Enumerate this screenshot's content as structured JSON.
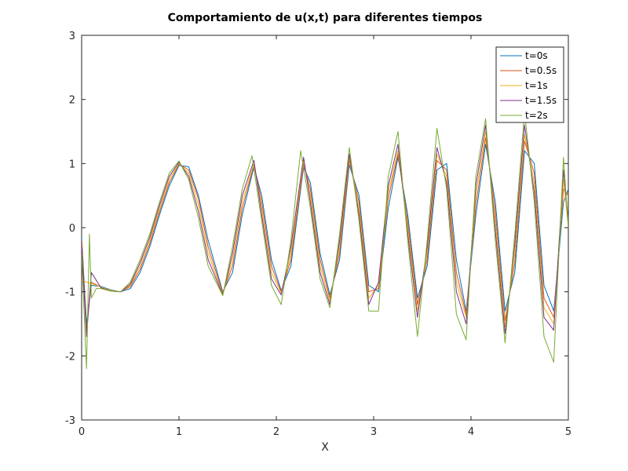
{
  "chart_data": {
    "type": "line",
    "title": "Comportamiento de u(x,t) para diferentes tiempos",
    "xlabel": "X",
    "ylabel": "",
    "xlim": [
      0,
      5
    ],
    "ylim": [
      -3,
      3
    ],
    "xticks": [
      "0",
      "1",
      "2",
      "3",
      "4",
      "5"
    ],
    "yticks": [
      "-3",
      "-2",
      "-1",
      "0",
      "1",
      "2",
      "3"
    ],
    "grid": false,
    "legend_position": "top-right",
    "series": [
      {
        "name": "t=0s",
        "color": "#0072BD",
        "x": [
          0,
          0.05,
          0.1,
          0.2,
          0.3,
          0.4,
          0.5,
          0.6,
          0.7,
          0.8,
          0.9,
          1.0,
          1.1,
          1.2,
          1.3,
          1.45,
          1.55,
          1.65,
          1.77,
          1.85,
          1.95,
          2.05,
          2.15,
          2.28,
          2.35,
          2.45,
          2.55,
          2.65,
          2.75,
          2.85,
          2.95,
          3.05,
          3.15,
          3.25,
          3.35,
          3.45,
          3.55,
          3.65,
          3.75,
          3.85,
          3.95,
          4.05,
          4.15,
          4.25,
          4.35,
          4.45,
          4.55,
          4.65,
          4.75,
          4.85,
          4.95,
          5.0
        ],
        "y": [
          -0.15,
          -1.5,
          -0.9,
          -0.92,
          -0.97,
          -1.0,
          -0.95,
          -0.7,
          -0.3,
          0.2,
          0.65,
          0.97,
          0.95,
          0.5,
          -0.2,
          -1.0,
          -0.7,
          0.2,
          0.95,
          0.5,
          -0.5,
          -0.98,
          -0.6,
          0.95,
          0.7,
          -0.4,
          -1.05,
          -0.5,
          0.98,
          0.5,
          -0.9,
          -1.0,
          0.3,
          1.1,
          0.2,
          -1.1,
          -0.6,
          0.9,
          1.0,
          -0.5,
          -1.3,
          0.2,
          1.3,
          0.4,
          -1.3,
          -0.7,
          1.2,
          1.0,
          -0.9,
          -1.3,
          0.4,
          0.6
        ]
      },
      {
        "name": "t=0.5s",
        "color": "#D95319",
        "x": [
          0,
          0.05,
          0.1,
          0.2,
          0.3,
          0.4,
          0.5,
          0.6,
          0.7,
          0.8,
          0.9,
          1.0,
          1.1,
          1.2,
          1.3,
          1.45,
          1.55,
          1.65,
          1.77,
          1.85,
          1.95,
          2.05,
          2.15,
          2.28,
          2.35,
          2.45,
          2.55,
          2.65,
          2.75,
          2.85,
          2.95,
          3.05,
          3.15,
          3.25,
          3.35,
          3.45,
          3.55,
          3.65,
          3.75,
          3.85,
          3.95,
          4.05,
          4.15,
          4.25,
          4.35,
          4.45,
          4.55,
          4.65,
          4.75,
          4.85,
          4.95,
          5.0
        ],
        "y": [
          -0.2,
          -1.6,
          -0.85,
          -0.93,
          -0.98,
          -1.0,
          -0.92,
          -0.65,
          -0.25,
          0.25,
          0.7,
          0.99,
          0.9,
          0.45,
          -0.3,
          -1.02,
          -0.6,
          0.3,
          0.98,
          0.4,
          -0.6,
          -1.0,
          -0.5,
          1.0,
          0.6,
          -0.5,
          -1.1,
          -0.4,
          1.05,
          0.4,
          -1.0,
          -0.95,
          0.45,
          1.15,
          0.1,
          -1.2,
          -0.5,
          1.05,
          0.9,
          -0.7,
          -1.35,
          0.35,
          1.4,
          0.25,
          -1.45,
          -0.55,
          1.35,
          0.85,
          -1.1,
          -1.4,
          0.6,
          0.5
        ]
      },
      {
        "name": "t=1s",
        "color": "#EDB120",
        "x": [
          0,
          0.05,
          0.1,
          0.2,
          0.3,
          0.4,
          0.5,
          0.6,
          0.7,
          0.8,
          0.9,
          1.0,
          1.1,
          1.2,
          1.3,
          1.45,
          1.55,
          1.65,
          1.77,
          1.85,
          1.95,
          2.05,
          2.15,
          2.28,
          2.35,
          2.45,
          2.55,
          2.65,
          2.75,
          2.85,
          2.95,
          3.05,
          3.15,
          3.25,
          3.35,
          3.45,
          3.55,
          3.65,
          3.75,
          3.85,
          3.95,
          4.05,
          4.15,
          4.25,
          4.35,
          4.45,
          4.55,
          4.65,
          4.75,
          4.85,
          4.95,
          5.0
        ],
        "y": [
          -0.82,
          -0.85,
          -0.87,
          -0.93,
          -0.98,
          -1.0,
          -0.9,
          -0.6,
          -0.2,
          0.3,
          0.75,
          1.0,
          0.85,
          0.35,
          -0.4,
          -1.04,
          -0.5,
          0.4,
          1.0,
          0.3,
          -0.7,
          -1.02,
          -0.4,
          1.05,
          0.5,
          -0.6,
          -1.15,
          -0.3,
          1.1,
          0.3,
          -1.1,
          -0.9,
          0.55,
          1.2,
          0.0,
          -1.3,
          -0.4,
          1.15,
          0.8,
          -0.85,
          -1.4,
          0.5,
          1.5,
          0.1,
          -1.55,
          -0.4,
          1.45,
          0.7,
          -1.25,
          -1.5,
          0.75,
          0.0
        ]
      },
      {
        "name": "t=1.5s",
        "color": "#7E2F8E",
        "x": [
          0,
          0.05,
          0.1,
          0.2,
          0.3,
          0.4,
          0.5,
          0.6,
          0.7,
          0.8,
          0.9,
          1.0,
          1.1,
          1.2,
          1.3,
          1.45,
          1.55,
          1.65,
          1.77,
          1.85,
          1.95,
          2.05,
          2.15,
          2.28,
          2.35,
          2.45,
          2.55,
          2.65,
          2.75,
          2.85,
          2.95,
          3.05,
          3.15,
          3.25,
          3.35,
          3.45,
          3.55,
          3.65,
          3.75,
          3.85,
          3.95,
          4.05,
          4.15,
          4.25,
          4.35,
          4.45,
          4.55,
          4.65,
          4.75,
          4.85,
          4.95,
          5.0
        ],
        "y": [
          -0.3,
          -1.7,
          -0.7,
          -0.94,
          -0.99,
          -1.0,
          -0.88,
          -0.55,
          -0.15,
          0.35,
          0.8,
          1.02,
          0.8,
          0.25,
          -0.5,
          -1.05,
          -0.4,
          0.5,
          1.05,
          0.2,
          -0.8,
          -1.05,
          -0.3,
          1.1,
          0.4,
          -0.7,
          -1.2,
          -0.2,
          1.15,
          0.2,
          -1.2,
          -0.85,
          0.65,
          1.3,
          -0.1,
          -1.4,
          -0.3,
          1.25,
          0.7,
          -1.0,
          -1.5,
          0.65,
          1.6,
          -0.05,
          -1.65,
          -0.25,
          1.6,
          0.55,
          -1.4,
          -1.6,
          0.9,
          0.1
        ]
      },
      {
        "name": "t=2s",
        "color": "#77AC30",
        "x": [
          0,
          0.05,
          0.08,
          0.1,
          0.15,
          0.2,
          0.3,
          0.4,
          0.5,
          0.6,
          0.7,
          0.8,
          0.9,
          1.0,
          1.1,
          1.2,
          1.3,
          1.45,
          1.55,
          1.65,
          1.75,
          1.85,
          1.95,
          2.05,
          2.15,
          2.25,
          2.35,
          2.45,
          2.55,
          2.65,
          2.75,
          2.85,
          2.95,
          3.05,
          3.15,
          3.25,
          3.35,
          3.45,
          3.55,
          3.65,
          3.75,
          3.85,
          3.95,
          4.05,
          4.15,
          4.25,
          4.35,
          4.45,
          4.55,
          4.65,
          4.75,
          4.85,
          4.95,
          5.0
        ],
        "y": [
          -0.4,
          -2.2,
          -0.1,
          -1.1,
          -0.95,
          -0.95,
          -0.99,
          -1.0,
          -0.85,
          -0.5,
          -0.1,
          0.4,
          0.85,
          1.04,
          0.75,
          0.15,
          -0.6,
          -1.06,
          -0.3,
          0.6,
          1.12,
          0.1,
          -0.9,
          -1.2,
          -0.2,
          1.2,
          0.3,
          -0.8,
          -1.25,
          -0.1,
          1.25,
          0.1,
          -1.3,
          -1.3,
          0.8,
          1.5,
          -0.2,
          -1.7,
          -0.2,
          1.55,
          0.6,
          -1.35,
          -1.75,
          0.8,
          1.7,
          -0.2,
          -1.8,
          -0.1,
          1.8,
          0.4,
          -1.7,
          -2.1,
          1.1,
          0.0
        ]
      }
    ]
  }
}
